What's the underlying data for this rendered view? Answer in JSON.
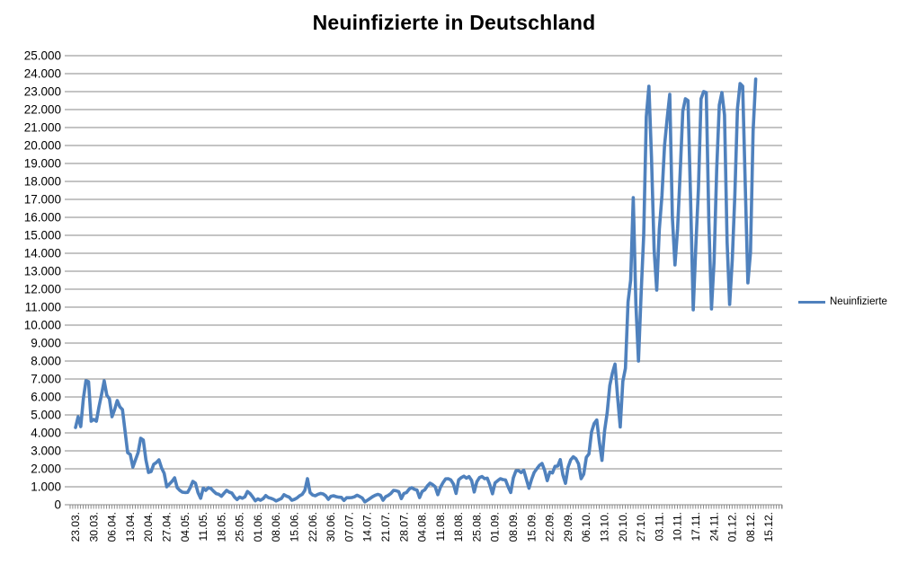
{
  "title": "Neuinfizierte in Deutschland",
  "legend": {
    "label": "Neuinfizierte"
  },
  "colors": {
    "line": "#4F81BD",
    "grid": "#898989",
    "axis": "#898989",
    "text": "#000000",
    "background": "#FFFFFF"
  },
  "chart_data": {
    "type": "line",
    "title": "Neuinfizierte in Deutschland",
    "grid": "horizontal",
    "legend_position": "right",
    "ylim": [
      0,
      25000
    ],
    "y_step": 1000,
    "y_tick_labels": [
      "0",
      "1.000",
      "2.000",
      "3.000",
      "4.000",
      "5.000",
      "6.000",
      "7.000",
      "8.000",
      "9.000",
      "10.000",
      "11.000",
      "12.000",
      "13.000",
      "14.000",
      "15.000",
      "16.000",
      "17.000",
      "18.000",
      "19.000",
      "20.000",
      "21.000",
      "22.000",
      "23.000",
      "24.000",
      "25.000"
    ],
    "x_tick_labels": [
      "23.03.",
      "30.03.",
      "06.04.",
      "13.04.",
      "20.04.",
      "27.04.",
      "04.05.",
      "11.05.",
      "18.05.",
      "25.05.",
      "01.06.",
      "08.06.",
      "15.06.",
      "22.06.",
      "30.06.",
      "07.07.",
      "14.07.",
      "21.07.",
      "28.07.",
      "04.08.",
      "11.08.",
      "18.08.",
      "25.08.",
      "01.09.",
      "08.09.",
      "15.09.",
      "22.09.",
      "29.09.",
      "06.10.",
      "13.10.",
      "20.10.",
      "27.10.",
      "03.11.",
      "10.11.",
      "17.11.",
      "24.11.",
      "01.12.",
      "08.12.",
      "15.12."
    ],
    "x_tick_every": 7,
    "series": [
      {
        "name": "Neuinfizierte",
        "color": "#4F81BD",
        "values": [
          4300,
          4900,
          4350,
          5900,
          6900,
          6850,
          4650,
          4750,
          4650,
          5450,
          6150,
          6900,
          6100,
          5900,
          4900,
          5300,
          5800,
          5450,
          5300,
          4100,
          2900,
          2800,
          2100,
          2500,
          2900,
          3700,
          3600,
          2500,
          1800,
          1850,
          2250,
          2350,
          2500,
          2050,
          1750,
          1000,
          1150,
          1300,
          1500,
          950,
          800,
          700,
          680,
          690,
          950,
          1300,
          1200,
          670,
          360,
          930,
          800,
          950,
          900,
          750,
          620,
          580,
          470,
          640,
          800,
          700,
          650,
          430,
          290,
          430,
          360,
          440,
          740,
          620,
          430,
          220,
          330,
          250,
          340,
          510,
          400,
          360,
          300,
          210,
          280,
          350,
          560,
          480,
          420,
          250,
          300,
          380,
          500,
          580,
          800,
          1450,
          680,
          540,
          500,
          580,
          630,
          600,
          500,
          300,
          470,
          500,
          450,
          420,
          410,
          240,
          390,
          390,
          400,
          440,
          530,
          460,
          380,
          160,
          250,
          350,
          450,
          530,
          580,
          530,
          250,
          450,
          520,
          630,
          800,
          780,
          730,
          340,
          630,
          680,
          870,
          950,
          860,
          820,
          400,
          740,
          830,
          1050,
          1200,
          1120,
          1000,
          560,
          970,
          1230,
          1440,
          1450,
          1380,
          1150,
          630,
          1390,
          1510,
          1590,
          1480,
          1570,
          1350,
          710,
          1280,
          1510,
          1570,
          1450,
          1480,
          1100,
          610,
          1220,
          1340,
          1450,
          1400,
          1380,
          1000,
          680,
          1500,
          1890,
          1900,
          1790,
          1920,
          1420,
          920,
          1410,
          1800,
          2000,
          2190,
          2300,
          1920,
          1340,
          1820,
          1770,
          2140,
          2150,
          2510,
          1660,
          1190,
          2090,
          2500,
          2670,
          2560,
          2280,
          1450,
          1700,
          2640,
          2830,
          4060,
          4520,
          4720,
          3480,
          2470,
          4120,
          5130,
          6640,
          7330,
          7830,
          5980,
          4330,
          6870,
          7600,
          11290,
          12500,
          17100,
          11200,
          8000,
          11700,
          15000,
          21600,
          23300,
          19300,
          14200,
          11950,
          15350,
          17200,
          20000,
          21500,
          22850,
          16000,
          13350,
          15350,
          18500,
          21900,
          22600,
          22500,
          16950,
          10850,
          14400,
          17600,
          22600,
          23000,
          22950,
          15750,
          10900,
          13550,
          18650,
          22250,
          22950,
          21700,
          14600,
          11150,
          13600,
          17250,
          22050,
          23450,
          23300,
          17750,
          12350,
          14050,
          20800,
          23700
        ]
      }
    ]
  }
}
